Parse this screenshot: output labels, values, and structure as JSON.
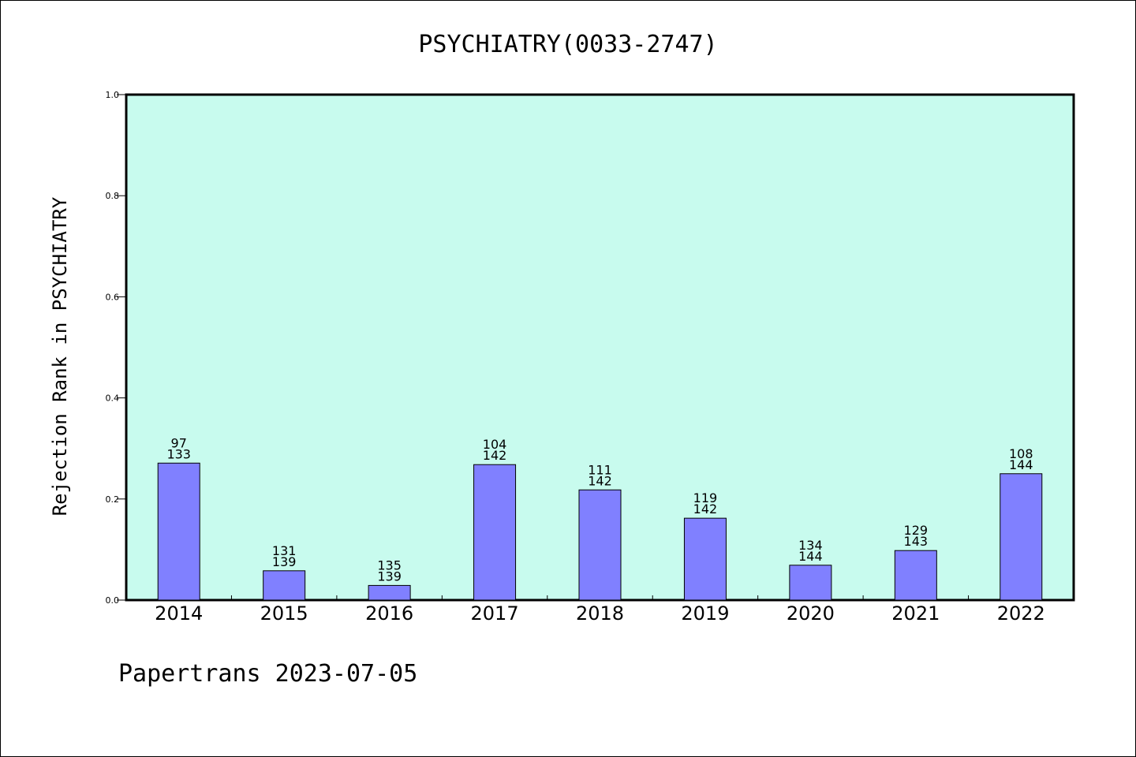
{
  "chart_data": {
    "type": "bar",
    "title": "PSYCHIATRY(0033-2747)",
    "ylabel": "Rejection Rank in PSYCHIATRY",
    "xlabel": "",
    "ylim": [
      0,
      1.0
    ],
    "yticks": [
      "0.0",
      "0.2",
      "0.4",
      "0.6",
      "0.8",
      "1.0"
    ],
    "grid": false,
    "categories": [
      "2014",
      "2015",
      "2016",
      "2017",
      "2018",
      "2019",
      "2020",
      "2021",
      "2022"
    ],
    "values": [
      0.271,
      0.058,
      0.029,
      0.268,
      0.218,
      0.162,
      0.069,
      0.098,
      0.25
    ],
    "data_labels": [
      {
        "top": "97",
        "bottom": "133"
      },
      {
        "top": "131",
        "bottom": "139"
      },
      {
        "top": "135",
        "bottom": "139"
      },
      {
        "top": "104",
        "bottom": "142"
      },
      {
        "top": "111",
        "bottom": "142"
      },
      {
        "top": "119",
        "bottom": "142"
      },
      {
        "top": "134",
        "bottom": "144"
      },
      {
        "top": "129",
        "bottom": "143"
      },
      {
        "top": "108",
        "bottom": "144"
      }
    ],
    "colors": {
      "plot_background": "#c8fbee",
      "bar_fill": "#8080ff",
      "bar_stroke": "#000000"
    }
  },
  "footer": "Papertrans 2023-07-05"
}
